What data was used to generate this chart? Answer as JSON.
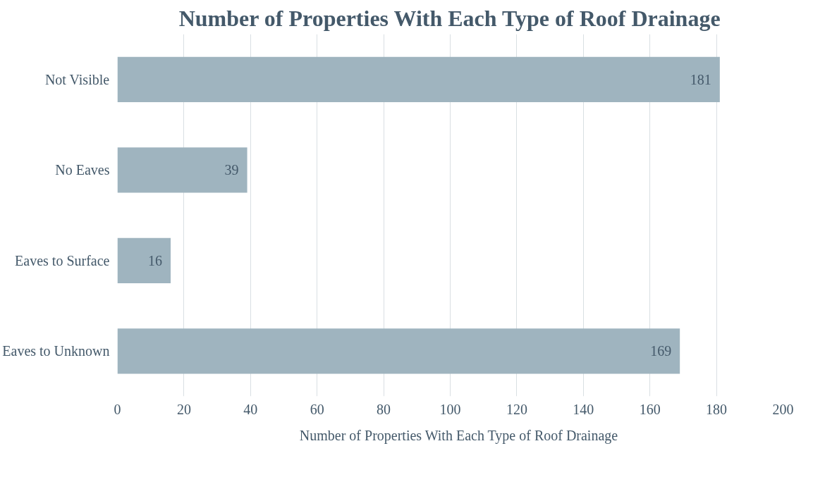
{
  "chart_data": {
    "type": "bar",
    "orientation": "horizontal",
    "title": "Number of Properties With Each Type of Roof Drainage",
    "categories": [
      "Not Visible",
      "No Eaves",
      "Eaves to Surface",
      "Eaves to Unknown"
    ],
    "series": [
      {
        "name": "Number of Properties With Each Type of Roof Drainage",
        "color": "#9fb4bf",
        "values": [
          181,
          39,
          16,
          169
        ]
      }
    ],
    "xlim": [
      0,
      200
    ],
    "xticks": [
      0,
      20,
      40,
      60,
      80,
      100,
      120,
      140,
      160,
      180,
      200
    ],
    "grid": "x",
    "legend": "bottom",
    "data_labels": true
  }
}
